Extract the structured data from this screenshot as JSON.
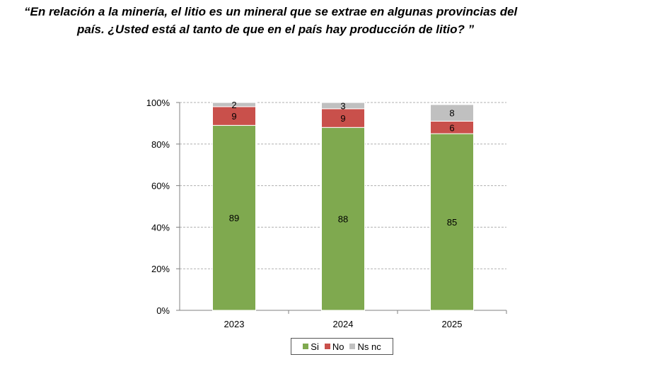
{
  "title": {
    "line1": "“En relación a la minería, el litio es un mineral que se extrae en algunas provincias del",
    "line2": "país. ¿Usted está al tanto de que en el país hay producción de litio? ”"
  },
  "chart_data": {
    "type": "bar",
    "stacked": true,
    "categories": [
      "2023",
      "2024",
      "2025"
    ],
    "series": [
      {
        "name": "Si",
        "color": "#7fa94f",
        "values": [
          89,
          88,
          85
        ]
      },
      {
        "name": "No",
        "color": "#c9504b",
        "values": [
          9,
          9,
          6
        ]
      },
      {
        "name": "Ns nc",
        "color": "#c0c0c0",
        "values": [
          2,
          3,
          8
        ]
      }
    ],
    "ylim": [
      0,
      100
    ],
    "yticks": [
      "0%",
      "20%",
      "40%",
      "60%",
      "80%",
      "100%"
    ],
    "ytick_values": [
      0,
      20,
      40,
      60,
      80,
      100
    ],
    "grid": true,
    "legend": [
      "Si",
      "No",
      "Ns nc"
    ],
    "legend_position": "bottom"
  }
}
